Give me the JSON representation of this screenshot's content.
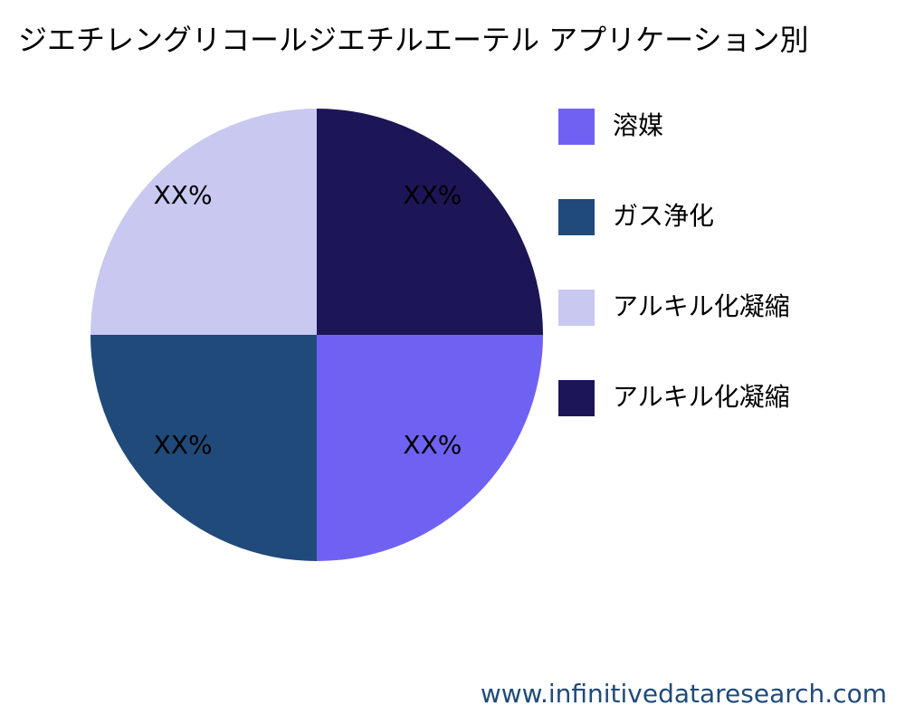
{
  "chart_data": {
    "type": "pie",
    "title": "ジエチレングリコールジエチルエーテル アプリケーション別",
    "categories": [
      "溶媒",
      "ガス浄化",
      "アルキル化凝縮",
      "アルキル化凝縮"
    ],
    "values": [
      25,
      25,
      25,
      25
    ],
    "value_labels": [
      "XX%",
      "XX%",
      "XX%",
      "XX%"
    ],
    "colors": [
      "#6f62f2",
      "#1f4a7a",
      "#c8c8f0",
      "#1c1656"
    ],
    "legend": "right",
    "source": "www.infinitivedataresearch.com"
  }
}
